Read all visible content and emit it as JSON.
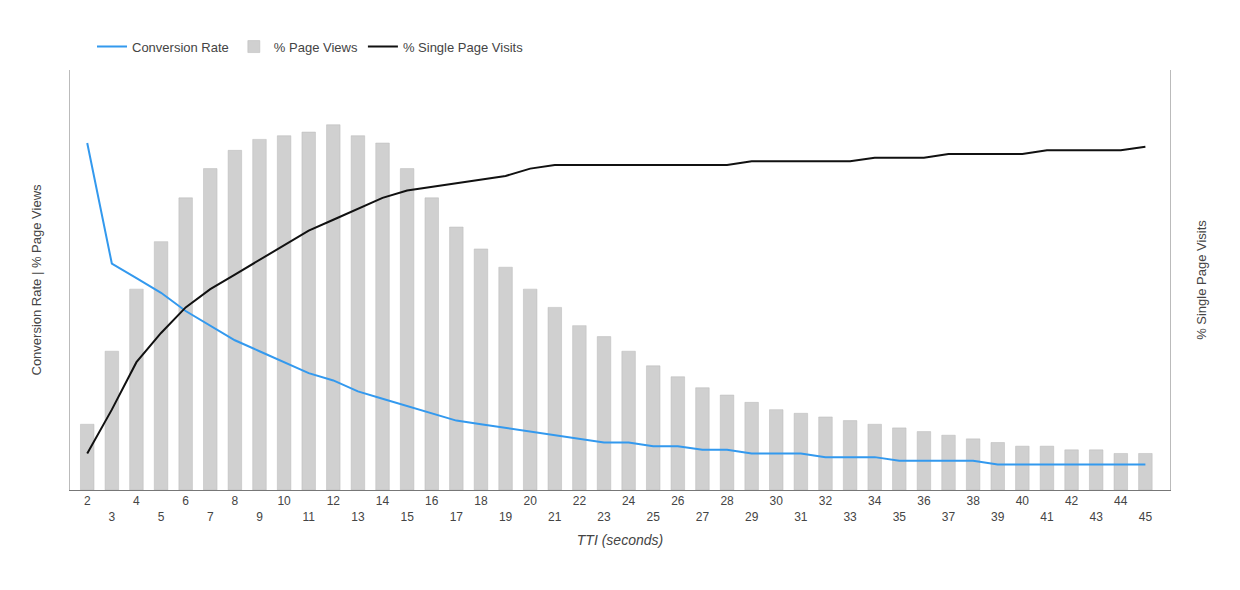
{
  "chart_data": {
    "type": "bar",
    "x_label": "TTI (seconds)",
    "y_label": "Conversion Rate | % Page Views",
    "y2_label": "% Single Page Visits",
    "x": [
      2,
      3,
      4,
      5,
      6,
      7,
      8,
      9,
      10,
      11,
      12,
      13,
      14,
      15,
      16,
      17,
      18,
      19,
      20,
      21,
      22,
      23,
      24,
      25,
      26,
      27,
      28,
      29,
      30,
      31,
      32,
      33,
      34,
      35,
      36,
      37,
      38,
      39,
      40,
      41,
      42,
      43,
      44,
      45
    ],
    "series": [
      {
        "name": "Conversion Rate",
        "type": "line",
        "color": "#3399ee",
        "axis": "y",
        "values": [
          0.95,
          0.62,
          0.58,
          0.54,
          0.49,
          0.45,
          0.41,
          0.38,
          0.35,
          0.32,
          0.3,
          0.27,
          0.25,
          0.23,
          0.21,
          0.19,
          0.18,
          0.17,
          0.16,
          0.15,
          0.14,
          0.13,
          0.13,
          0.12,
          0.12,
          0.11,
          0.11,
          0.1,
          0.1,
          0.1,
          0.09,
          0.09,
          0.09,
          0.08,
          0.08,
          0.08,
          0.08,
          0.07,
          0.07,
          0.07,
          0.07,
          0.07,
          0.07,
          0.07
        ]
      },
      {
        "name": "% Page Views",
        "type": "bar",
        "color": "#d0d0d0",
        "axis": "y",
        "values": [
          0.18,
          0.38,
          0.55,
          0.68,
          0.8,
          0.88,
          0.93,
          0.96,
          0.97,
          0.98,
          1.0,
          0.97,
          0.95,
          0.88,
          0.8,
          0.72,
          0.66,
          0.61,
          0.55,
          0.5,
          0.45,
          0.42,
          0.38,
          0.34,
          0.31,
          0.28,
          0.26,
          0.24,
          0.22,
          0.21,
          0.2,
          0.19,
          0.18,
          0.17,
          0.16,
          0.15,
          0.14,
          0.13,
          0.12,
          0.12,
          0.11,
          0.11,
          0.1,
          0.1
        ]
      },
      {
        "name": "% Single Page Visits",
        "type": "line",
        "color": "#111111",
        "axis": "y2",
        "values": [
          0.1,
          0.22,
          0.35,
          0.43,
          0.5,
          0.55,
          0.59,
          0.63,
          0.67,
          0.71,
          0.74,
          0.77,
          0.8,
          0.82,
          0.83,
          0.84,
          0.85,
          0.86,
          0.88,
          0.89,
          0.89,
          0.89,
          0.89,
          0.89,
          0.89,
          0.89,
          0.89,
          0.9,
          0.9,
          0.9,
          0.9,
          0.9,
          0.91,
          0.91,
          0.91,
          0.92,
          0.92,
          0.92,
          0.92,
          0.93,
          0.93,
          0.93,
          0.93,
          0.94
        ]
      }
    ],
    "xlim": [
      1.3,
      46.0
    ],
    "xticks": [
      2,
      3,
      4,
      5,
      6,
      7,
      8,
      9,
      10,
      11,
      12,
      13,
      14,
      15,
      16,
      17,
      18,
      19,
      20,
      21,
      22,
      23,
      24,
      25,
      26,
      27,
      28,
      29,
      30,
      31,
      32,
      33,
      34,
      35,
      36,
      37,
      38,
      39,
      40,
      41,
      42,
      43,
      44,
      45
    ],
    "ylim": [
      0,
      1.15
    ],
    "y2lim": [
      0,
      1.15
    ],
    "tick_labels": "x",
    "grid": false,
    "legend": "top"
  }
}
